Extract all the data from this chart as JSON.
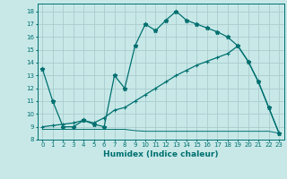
{
  "xlabel": "Humidex (Indice chaleur)",
  "xlim": [
    -0.5,
    23.5
  ],
  "ylim": [
    8.0,
    18.6
  ],
  "yticks": [
    8,
    9,
    10,
    11,
    12,
    13,
    14,
    15,
    16,
    17,
    18
  ],
  "xticks": [
    0,
    1,
    2,
    3,
    4,
    5,
    6,
    7,
    8,
    9,
    10,
    11,
    12,
    13,
    14,
    15,
    16,
    17,
    18,
    19,
    20,
    21,
    22,
    23
  ],
  "bg_color": "#c8e8e8",
  "grid_color": "#a8cccc",
  "line_color": "#007070",
  "line1_x": [
    0,
    1,
    2,
    3,
    4,
    5,
    6,
    7,
    8,
    9,
    10,
    11,
    12,
    13,
    14,
    15,
    16,
    17,
    18,
    19,
    20,
    21,
    22,
    23
  ],
  "line1_y": [
    13.5,
    11.0,
    9.0,
    9.0,
    9.5,
    9.2,
    9.0,
    13.0,
    12.0,
    15.3,
    17.0,
    16.5,
    17.3,
    18.0,
    17.3,
    17.0,
    16.7,
    16.4,
    16.0,
    15.3,
    14.1,
    12.5,
    10.5,
    8.5
  ],
  "line2_x": [
    0,
    1,
    2,
    3,
    4,
    5,
    6,
    7,
    8,
    9,
    10,
    11,
    12,
    13,
    14,
    15,
    16,
    17,
    18,
    19,
    20,
    21,
    22,
    23
  ],
  "line2_y": [
    9.0,
    9.1,
    9.2,
    9.3,
    9.5,
    9.3,
    9.7,
    10.3,
    10.5,
    11.0,
    11.5,
    12.0,
    12.5,
    13.0,
    13.4,
    13.8,
    14.1,
    14.4,
    14.7,
    15.3,
    14.1,
    12.5,
    10.5,
    8.5
  ],
  "line3_x": [
    0,
    1,
    2,
    3,
    4,
    5,
    6,
    7,
    8,
    9,
    10,
    11,
    12,
    13,
    14,
    15,
    16,
    17,
    18,
    19,
    20,
    21,
    22,
    23
  ],
  "line3_y": [
    8.8,
    8.8,
    8.8,
    8.8,
    8.8,
    8.8,
    8.8,
    8.8,
    8.8,
    8.7,
    8.65,
    8.65,
    8.65,
    8.65,
    8.65,
    8.65,
    8.65,
    8.65,
    8.65,
    8.65,
    8.65,
    8.65,
    8.65,
    8.5
  ]
}
